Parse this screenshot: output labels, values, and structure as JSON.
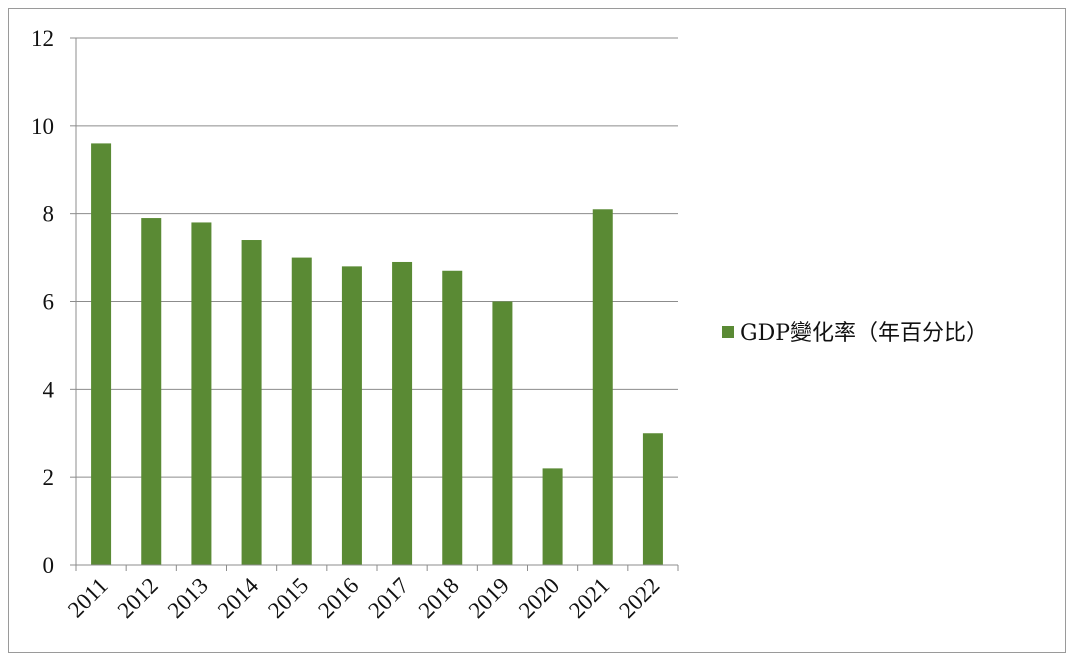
{
  "chart_data": {
    "type": "bar",
    "categories": [
      "2011",
      "2012",
      "2013",
      "2014",
      "2015",
      "2016",
      "2017",
      "2018",
      "2019",
      "2020",
      "2021",
      "2022"
    ],
    "series": [
      {
        "name": "GDP變化率（年百分比）",
        "values": [
          9.6,
          7.9,
          7.8,
          7.4,
          7.0,
          6.8,
          6.9,
          6.7,
          6.0,
          2.2,
          8.1,
          3.0
        ],
        "color": "#5a8a34"
      }
    ],
    "ylim": [
      0,
      12
    ],
    "yticks": [
      0,
      2,
      4,
      6,
      8,
      10,
      12
    ],
    "grid": true,
    "legend_position": "right"
  }
}
